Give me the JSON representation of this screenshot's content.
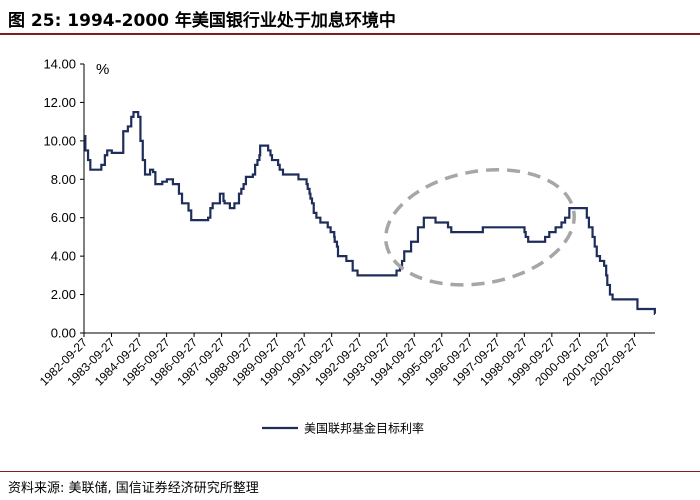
{
  "header": {
    "title": "图 25:  1994-2000 年美国银行业处于加息环境中"
  },
  "footer": {
    "source": "资料来源:  美联储,  国信证券经济研究所整理"
  },
  "colors": {
    "series": "#1f2d5a",
    "highlight_ellipse": "#a6a6a6",
    "rule": "#7f1f1f"
  },
  "chart_data": {
    "type": "line",
    "title": "",
    "unit_label": "%",
    "xlabel": "",
    "ylabel": "",
    "ylim": [
      0,
      14
    ],
    "yticks": [
      "14.00",
      "12.00",
      "10.00",
      "8.00",
      "6.00",
      "4.00",
      "2.00",
      "0.00"
    ],
    "x_tick_labels": [
      "1982-09-27",
      "1983-09-27",
      "1984-09-27",
      "1985-09-27",
      "1986-09-27",
      "1987-09-27",
      "1988-09-27",
      "1989-09-27",
      "1990-09-27",
      "1991-09-27",
      "1992-09-27",
      "1993-09-27",
      "1994-09-27",
      "1995-09-27",
      "1996-09-27",
      "1997-09-27",
      "1998-09-27",
      "1999-09-27",
      "2000-09-27",
      "2001-09-27",
      "2002-09-27"
    ],
    "x_range": [
      "1982-09-27",
      "2003-06-27"
    ],
    "grid": false,
    "legend_position": "bottom-center",
    "annotation": "dashed ellipse highlighting 1994-2000",
    "series": [
      {
        "name": "美国联邦基金目标利率",
        "step": true,
        "points": [
          [
            "1982-09-27",
            10.25
          ],
          [
            "1982-10-15",
            9.5
          ],
          [
            "1982-11-20",
            9.0
          ],
          [
            "1982-12-20",
            8.5
          ],
          [
            "1983-03-01",
            8.5
          ],
          [
            "1983-05-15",
            8.75
          ],
          [
            "1983-07-01",
            9.25
          ],
          [
            "1983-08-01",
            9.5
          ],
          [
            "1983-10-01",
            9.375
          ],
          [
            "1984-03-01",
            10.5
          ],
          [
            "1984-05-01",
            10.75
          ],
          [
            "1984-06-15",
            11.25
          ],
          [
            "1984-07-15",
            11.5
          ],
          [
            "1984-09-15",
            11.25
          ],
          [
            "1984-10-15",
            10.0
          ],
          [
            "1984-11-15",
            9.0
          ],
          [
            "1984-12-15",
            8.25
          ],
          [
            "1985-01-15",
            8.25
          ],
          [
            "1985-02-20",
            8.5
          ],
          [
            "1985-04-01",
            8.375
          ],
          [
            "1985-05-01",
            7.75
          ],
          [
            "1985-06-15",
            7.75
          ],
          [
            "1985-08-01",
            7.875
          ],
          [
            "1985-10-01",
            8.0
          ],
          [
            "1985-12-20",
            7.75
          ],
          [
            "1986-03-10",
            7.25
          ],
          [
            "1986-04-20",
            6.75
          ],
          [
            "1986-07-15",
            6.375
          ],
          [
            "1986-08-20",
            5.875
          ],
          [
            "1987-04-01",
            6.0
          ],
          [
            "1987-05-01",
            6.5
          ],
          [
            "1987-06-01",
            6.75
          ],
          [
            "1987-09-05",
            7.25
          ],
          [
            "1987-10-22",
            6.875
          ],
          [
            "1987-11-05",
            6.75
          ],
          [
            "1988-01-15",
            6.5
          ],
          [
            "1988-02-15",
            6.5
          ],
          [
            "1988-03-15",
            6.75
          ],
          [
            "1988-05-15",
            7.25
          ],
          [
            "1988-06-15",
            7.5
          ],
          [
            "1988-07-15",
            7.75
          ],
          [
            "1988-08-15",
            8.125
          ],
          [
            "1988-11-15",
            8.25
          ],
          [
            "1988-12-15",
            8.75
          ],
          [
            "1989-01-15",
            9.0
          ],
          [
            "1989-02-10",
            9.25
          ],
          [
            "1989-02-20",
            9.75
          ],
          [
            "1989-05-20",
            9.75
          ],
          [
            "1989-06-06",
            9.5
          ],
          [
            "1989-07-07",
            9.25
          ],
          [
            "1989-07-27",
            9.0
          ],
          [
            "1989-10-16",
            8.75
          ],
          [
            "1989-11-06",
            8.5
          ],
          [
            "1989-12-20",
            8.25
          ],
          [
            "1990-07-13",
            8.0
          ],
          [
            "1990-10-29",
            7.75
          ],
          [
            "1990-11-13",
            7.5
          ],
          [
            "1990-12-07",
            7.25
          ],
          [
            "1990-12-19",
            7.0
          ],
          [
            "1991-01-09",
            6.75
          ],
          [
            "1991-02-01",
            6.25
          ],
          [
            "1991-03-08",
            6.0
          ],
          [
            "1991-04-30",
            5.75
          ],
          [
            "1991-08-06",
            5.5
          ],
          [
            "1991-09-13",
            5.25
          ],
          [
            "1991-10-31",
            5.0
          ],
          [
            "1991-11-06",
            4.75
          ],
          [
            "1991-12-06",
            4.5
          ],
          [
            "1991-12-20",
            4.0
          ],
          [
            "1992-04-09",
            3.75
          ],
          [
            "1992-07-02",
            3.25
          ],
          [
            "1992-09-04",
            3.0
          ],
          [
            "1994-02-04",
            3.25
          ],
          [
            "1994-03-22",
            3.5
          ],
          [
            "1994-04-18",
            3.75
          ],
          [
            "1994-05-17",
            4.25
          ],
          [
            "1994-08-16",
            4.75
          ],
          [
            "1994-11-15",
            5.5
          ],
          [
            "1995-02-01",
            6.0
          ],
          [
            "1995-07-06",
            5.75
          ],
          [
            "1995-12-19",
            5.5
          ],
          [
            "1996-01-31",
            5.25
          ],
          [
            "1997-03-25",
            5.5
          ],
          [
            "1998-09-29",
            5.25
          ],
          [
            "1998-10-15",
            5.0
          ],
          [
            "1998-11-17",
            4.75
          ],
          [
            "1999-06-30",
            5.0
          ],
          [
            "1999-08-24",
            5.25
          ],
          [
            "1999-11-16",
            5.5
          ],
          [
            "2000-02-02",
            5.75
          ],
          [
            "2000-03-21",
            6.0
          ],
          [
            "2000-05-16",
            6.5
          ],
          [
            "2001-01-03",
            6.0
          ],
          [
            "2001-01-31",
            5.5
          ],
          [
            "2001-03-20",
            5.0
          ],
          [
            "2001-04-18",
            4.5
          ],
          [
            "2001-05-15",
            4.0
          ],
          [
            "2001-06-27",
            3.75
          ],
          [
            "2001-08-21",
            3.5
          ],
          [
            "2001-09-17",
            3.0
          ],
          [
            "2001-10-02",
            2.5
          ],
          [
            "2001-11-06",
            2.0
          ],
          [
            "2001-12-11",
            1.75
          ],
          [
            "2002-11-06",
            1.25
          ],
          [
            "2003-06-25",
            1.0
          ],
          [
            "2003-06-27",
            1.0
          ]
        ]
      }
    ]
  }
}
